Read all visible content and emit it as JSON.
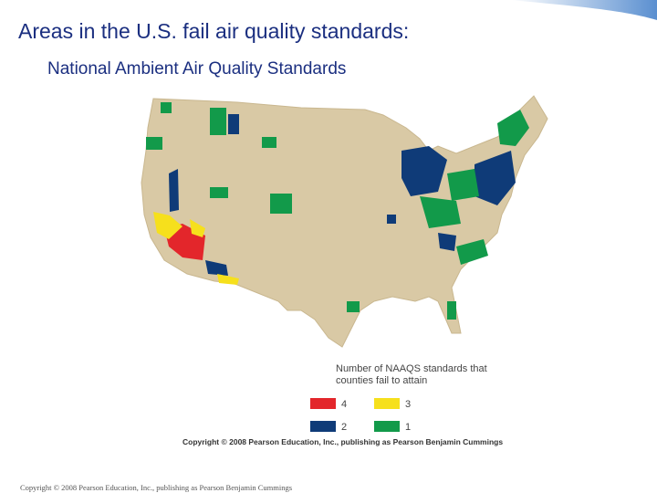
{
  "header": {
    "title": "Areas in the U.S. fail air quality standards:",
    "subtitle": "National Ambient Air Quality Standards"
  },
  "legend": {
    "title_lines": [
      "Number of NAAQS standards that",
      "counties fail to attain"
    ],
    "items": [
      {
        "label": "4",
        "color": "#e3262b"
      },
      {
        "label": "3",
        "color": "#f6e01c"
      },
      {
        "label": "2",
        "color": "#0f3b78"
      },
      {
        "label": "1",
        "color": "#129a4a"
      }
    ]
  },
  "map_copyright": "Copyright © 2008 Pearson Education, Inc., publishing as Pearson Benjamin Cummings",
  "footer": "Copyright © 2008 Pearson Education, Inc., publishing as Pearson Benjamin Cummings"
}
